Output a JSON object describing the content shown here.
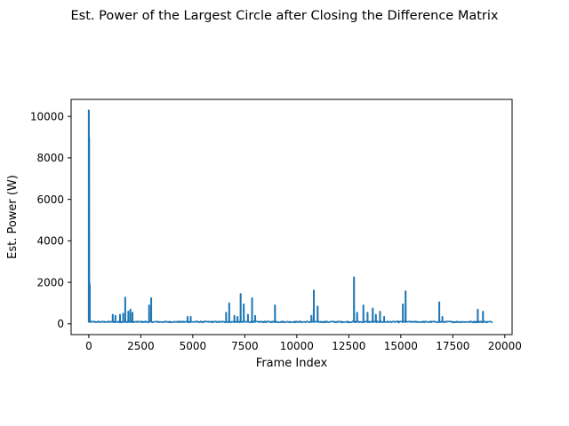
{
  "chart_data": {
    "type": "line",
    "title": "Est. Power of the Largest Circle after Closing the Difference Matrix",
    "xlabel": "Frame Index",
    "ylabel": "Est. Power (W)",
    "xlim": [
      -850,
      20350
    ],
    "ylim": [
      -520,
      10820
    ],
    "xticks": [
      0,
      2500,
      5000,
      7500,
      10000,
      12500,
      15000,
      17500,
      20000
    ],
    "xtick_labels": [
      "0",
      "2500",
      "5000",
      "7500",
      "10000",
      "12500",
      "15000",
      "17500",
      "20000"
    ],
    "yticks": [
      0,
      2000,
      4000,
      6000,
      8000,
      10000
    ],
    "ytick_labels": [
      "0",
      "2000",
      "4000",
      "6000",
      "8000",
      "10000"
    ],
    "grid": false,
    "legend": "none",
    "series": [
      {
        "color": "#1f77b4",
        "x_start": 0,
        "x_end": 19400,
        "baseline": 80,
        "baseline_noise": 60,
        "spikes": [
          {
            "x": 0,
            "y": 10300
          },
          {
            "x": 15,
            "y": 9000
          },
          {
            "x": 30,
            "y": 2000
          },
          {
            "x": 45,
            "y": 1900
          },
          {
            "x": 1150,
            "y": 450
          },
          {
            "x": 1280,
            "y": 400
          },
          {
            "x": 1500,
            "y": 450
          },
          {
            "x": 1650,
            "y": 500
          },
          {
            "x": 1750,
            "y": 1280
          },
          {
            "x": 1900,
            "y": 600
          },
          {
            "x": 2000,
            "y": 700
          },
          {
            "x": 2100,
            "y": 550
          },
          {
            "x": 2900,
            "y": 900
          },
          {
            "x": 3000,
            "y": 1250
          },
          {
            "x": 4750,
            "y": 350
          },
          {
            "x": 4900,
            "y": 350
          },
          {
            "x": 6600,
            "y": 550
          },
          {
            "x": 6750,
            "y": 1000
          },
          {
            "x": 7000,
            "y": 400
          },
          {
            "x": 7150,
            "y": 350
          },
          {
            "x": 7300,
            "y": 1450
          },
          {
            "x": 7450,
            "y": 950
          },
          {
            "x": 7650,
            "y": 450
          },
          {
            "x": 7850,
            "y": 1250
          },
          {
            "x": 8000,
            "y": 400
          },
          {
            "x": 8950,
            "y": 900
          },
          {
            "x": 10700,
            "y": 400
          },
          {
            "x": 10820,
            "y": 1620
          },
          {
            "x": 11000,
            "y": 850
          },
          {
            "x": 12750,
            "y": 2250
          },
          {
            "x": 12900,
            "y": 550
          },
          {
            "x": 13200,
            "y": 900
          },
          {
            "x": 13400,
            "y": 550
          },
          {
            "x": 13650,
            "y": 750
          },
          {
            "x": 13800,
            "y": 450
          },
          {
            "x": 14000,
            "y": 600
          },
          {
            "x": 14200,
            "y": 350
          },
          {
            "x": 15100,
            "y": 950
          },
          {
            "x": 15230,
            "y": 1580
          },
          {
            "x": 16850,
            "y": 1050
          },
          {
            "x": 17000,
            "y": 350
          },
          {
            "x": 18700,
            "y": 700
          },
          {
            "x": 18950,
            "y": 600
          }
        ]
      }
    ]
  }
}
